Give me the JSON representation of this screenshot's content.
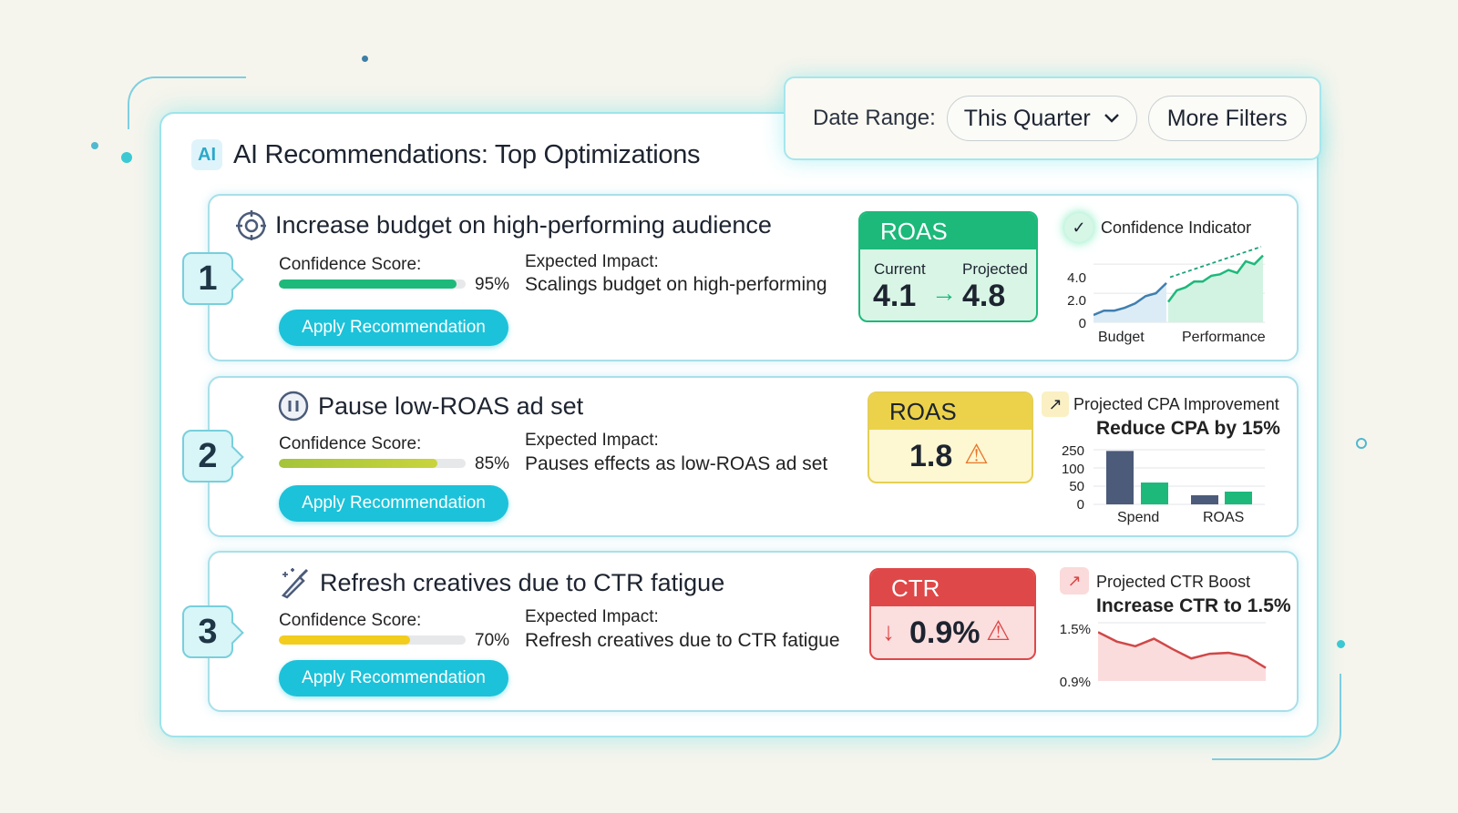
{
  "header": {
    "title": "AI Recommendations: Top Optimizations",
    "ai_badge": "AI"
  },
  "filters": {
    "date_range_label": "Date Range:",
    "date_range_value": "This Quarter",
    "more_filters": "More Filters"
  },
  "colors": {
    "accent": "#1cc2d9",
    "green": "#1db97a",
    "yellow": "#ecd24a",
    "red": "#df4848",
    "navy": "#4b5b79"
  },
  "recommendations": [
    {
      "number": "1",
      "icon": "target-icon",
      "title": "Increase budget on high-performing audience",
      "confidence_label": "Confidence Score:",
      "confidence": 95,
      "confidence_text": "95%",
      "impact_label": "Expected Impact:",
      "impact": "Scalings budget on high-performing",
      "apply": "Apply Recommendation",
      "metric": {
        "name": "ROAS",
        "current_label": "Current",
        "projected_label": "Projected",
        "current": "4.1",
        "projected": "4.8"
      },
      "side": {
        "icon": "check-icon",
        "title": "Confidence Indicator",
        "chart": {
          "type": "line",
          "yticks": [
            "4.0",
            "2.0",
            "0"
          ],
          "ylim": [
            0,
            5
          ],
          "xlabels": [
            "Budget",
            "Performance"
          ],
          "budget": [
            0.5,
            0.8,
            0.8,
            1.0,
            1.3,
            1.8,
            2.0,
            2.7
          ],
          "performance": [
            1.4,
            2.2,
            2.4,
            2.8,
            2.8,
            3.2,
            3.3,
            3.6,
            3.4,
            4.2,
            4.0,
            4.6
          ]
        }
      }
    },
    {
      "number": "2",
      "icon": "pause-icon",
      "title": "Pause low-ROAS ad set",
      "confidence_label": "Confidence Score:",
      "confidence": 85,
      "confidence_text": "85%",
      "impact_label": "Expected Impact:",
      "impact": "Pauses effects as low-ROAS ad set",
      "apply": "Apply Recommendation",
      "metric": {
        "name": "ROAS",
        "value": "1.8",
        "icon": "warning-icon"
      },
      "side": {
        "icon": "trend-arrow-icon",
        "title": "Projected CPA Improvement",
        "headline": "Reduce CPA by 15%",
        "chart": {
          "type": "bar",
          "yticks": [
            "250",
            "100",
            "50",
            "0"
          ],
          "categories": [
            "Spend",
            "ROAS"
          ],
          "series": [
            {
              "values": [
                240,
                25
              ]
            },
            {
              "values": [
                60,
                35
              ]
            }
          ]
        }
      }
    },
    {
      "number": "3",
      "icon": "paintbrush-icon",
      "title": "Refresh creatives due to CTR fatigue",
      "confidence_label": "Confidence Score:",
      "confidence": 70,
      "confidence_text": "70%",
      "impact_label": "Expected Impact:",
      "impact": "Refresh creatives due to CTR fatigue",
      "apply": "Apply Recommendation",
      "metric": {
        "name": "CTR",
        "value": "0.9%",
        "icon": "warning-icon",
        "trend": "down-arrow-icon"
      },
      "side": {
        "icon": "trending-up-icon",
        "title": "Projected CTR Boost",
        "headline": "Increase CTR to 1.5%",
        "chart": {
          "type": "area",
          "yticks": [
            "1.5%",
            "0.9%"
          ],
          "ylim": [
            0.9,
            1.5
          ],
          "values": [
            1.4,
            1.3,
            1.25,
            1.33,
            1.22,
            1.12,
            1.17,
            1.18,
            1.14,
            1.02
          ]
        }
      }
    }
  ]
}
